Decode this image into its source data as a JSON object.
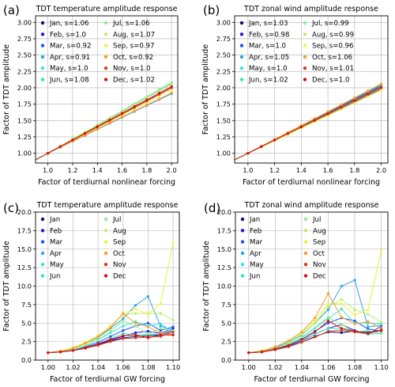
{
  "months": [
    "Jan",
    "Feb",
    "Mar",
    "Apr",
    "May",
    "Jun",
    "Jul",
    "Aug",
    "Sep",
    "Oct",
    "Nov",
    "Dec"
  ],
  "colors": [
    "#0d0d80",
    "#1c1ce0",
    "#1c55f5",
    "#2aa4f2",
    "#30e6e0",
    "#2ee6c0",
    "#8ef090",
    "#b8f26a",
    "#f0f03a",
    "#ff9a28",
    "#e03a1a",
    "#d81010"
  ],
  "chart_data": [
    {
      "panel_label": "(a)",
      "type": "line",
      "title": "TDT temperature amplitude response",
      "xlabel": "Factor of terdiurnal nonlinear forcing",
      "ylabel": "Factor of TDT amplitude",
      "xlim": [
        0.9,
        2.05
      ],
      "ylim": [
        0.85,
        3.1
      ],
      "xticks": [
        "1.0",
        "1.2",
        "1.4",
        "1.6",
        "1.8",
        "2.0"
      ],
      "yticks": [
        "1.00",
        "1.25",
        "1.50",
        "1.75",
        "2.00",
        "2.25",
        "2.50",
        "2.75",
        "3.00"
      ],
      "grid": true,
      "legend_position": "top-left",
      "legend_columns": 2,
      "x": [
        1.0,
        1.1,
        1.2,
        1.3,
        1.4,
        1.5,
        1.6,
        1.7,
        1.8,
        1.9,
        2.0
      ],
      "reference_line": {
        "from": [
          0.9,
          0.9
        ],
        "to": [
          2.0,
          2.0
        ]
      },
      "series": [
        {
          "name": "Jan",
          "legend": "Jan, s=1.06",
          "slope": 1.06
        },
        {
          "name": "Feb",
          "legend": "Feb, s=1.0",
          "slope": 1.0
        },
        {
          "name": "Mar",
          "legend": "Mar, s=0.92",
          "slope": 0.92
        },
        {
          "name": "Apr",
          "legend": "Apr, s=0.91",
          "slope": 0.91
        },
        {
          "name": "May",
          "legend": "May, s=1.0",
          "slope": 1.0
        },
        {
          "name": "Jun",
          "legend": "Jun, s=1.08",
          "slope": 1.08
        },
        {
          "name": "Jul",
          "legend": "Jul, s=1.06",
          "slope": 1.06
        },
        {
          "name": "Aug",
          "legend": "Aug, s=1.07",
          "slope": 1.07
        },
        {
          "name": "Sep",
          "legend": "Sep, s=0.97",
          "slope": 0.97
        },
        {
          "name": "Oct",
          "legend": "Oct, s=0.92",
          "slope": 0.92
        },
        {
          "name": "Nov",
          "legend": "Nov, s=1.0",
          "slope": 1.0
        },
        {
          "name": "Dec",
          "legend": "Dec, s=1.02",
          "slope": 1.02
        }
      ]
    },
    {
      "panel_label": "(b)",
      "type": "line",
      "title": "TDT zonal wind amplitude response",
      "xlabel": "Factor of terdiurnal nonlinear forcing",
      "ylabel": "Factor of TDT amplitude",
      "xlim": [
        0.9,
        2.05
      ],
      "ylim": [
        0.85,
        3.1
      ],
      "xticks": [
        "1.0",
        "1.2",
        "1.4",
        "1.6",
        "1.8",
        "2.0"
      ],
      "yticks": [
        "1.00",
        "1.25",
        "1.50",
        "1.75",
        "2.00",
        "2.25",
        "2.50",
        "2.75",
        "3.00"
      ],
      "grid": true,
      "legend_position": "top-left",
      "legend_columns": 2,
      "x": [
        1.0,
        1.1,
        1.2,
        1.3,
        1.4,
        1.5,
        1.6,
        1.7,
        1.8,
        1.9,
        2.0
      ],
      "reference_line": {
        "from": [
          0.9,
          0.9
        ],
        "to": [
          2.0,
          2.0
        ]
      },
      "series": [
        {
          "name": "Jan",
          "legend": "Jan, s=1.03",
          "slope": 1.03
        },
        {
          "name": "Feb",
          "legend": "Feb, s=0.98",
          "slope": 0.98
        },
        {
          "name": "Mar",
          "legend": "Mar, s=1.0",
          "slope": 1.0
        },
        {
          "name": "Apr",
          "legend": "Apr, s=1.05",
          "slope": 1.05
        },
        {
          "name": "May",
          "legend": "May, s=1.0",
          "slope": 1.0
        },
        {
          "name": "Jun",
          "legend": "Jun, s=1.02",
          "slope": 1.02
        },
        {
          "name": "Jul",
          "legend": "Jul, s=0.99",
          "slope": 0.99
        },
        {
          "name": "Aug",
          "legend": "Aug, s=0.99",
          "slope": 0.99
        },
        {
          "name": "Sep",
          "legend": "Sep, s=0.96",
          "slope": 0.96
        },
        {
          "name": "Oct",
          "legend": "Oct, s=1.06",
          "slope": 1.06
        },
        {
          "name": "Nov",
          "legend": "Nov, s=1.01",
          "slope": 1.01
        },
        {
          "name": "Dec",
          "legend": "Dec, s=1.0",
          "slope": 1.0
        }
      ]
    },
    {
      "panel_label": "(c)",
      "type": "line",
      "title": "TDT temperature amplitude response",
      "xlabel": "Factor of terdiurnal GW forcing",
      "ylabel": "Factor of TDT amplitude",
      "xlim": [
        0.99,
        1.105
      ],
      "ylim": [
        0,
        20
      ],
      "xticks": [
        "1.00",
        "1.02",
        "1.04",
        "1.06",
        "1.08",
        "1.10"
      ],
      "yticks": [
        "0.0",
        "2.5",
        "5.0",
        "7.5",
        "10.0",
        "12.5",
        "15.0",
        "17.5",
        "20.0"
      ],
      "grid": true,
      "legend_position": "top-left",
      "legend_columns": 2,
      "x": [
        1.0,
        1.01,
        1.02,
        1.03,
        1.04,
        1.05,
        1.06,
        1.07,
        1.08,
        1.09,
        1.1
      ],
      "series": [
        {
          "name": "Jan",
          "values": [
            1.0,
            1.1,
            1.3,
            1.6,
            2.0,
            2.6,
            3.0,
            3.2,
            3.3,
            3.4,
            4.0
          ]
        },
        {
          "name": "Feb",
          "values": [
            1.0,
            1.1,
            1.3,
            1.6,
            2.1,
            2.7,
            3.2,
            3.7,
            3.9,
            3.6,
            4.3
          ]
        },
        {
          "name": "Mar",
          "values": [
            1.0,
            1.1,
            1.4,
            1.8,
            2.4,
            3.2,
            4.0,
            4.6,
            5.0,
            4.0,
            4.5
          ]
        },
        {
          "name": "Apr",
          "values": [
            1.0,
            1.2,
            1.6,
            2.2,
            3.0,
            4.3,
            5.6,
            7.4,
            8.6,
            4.6,
            4.0
          ]
        },
        {
          "name": "May",
          "values": [
            1.0,
            1.1,
            1.4,
            1.9,
            2.7,
            3.7,
            4.6,
            5.2,
            4.6,
            4.9,
            3.8
          ]
        },
        {
          "name": "Jun",
          "values": [
            1.0,
            1.1,
            1.3,
            1.7,
            2.2,
            2.9,
            3.6,
            3.4,
            3.5,
            3.5,
            3.5
          ]
        },
        {
          "name": "Jul",
          "values": [
            1.0,
            1.2,
            1.5,
            2.0,
            2.7,
            3.9,
            5.3,
            4.6,
            3.5,
            4.3,
            4.0
          ]
        },
        {
          "name": "Aug",
          "values": [
            1.0,
            1.2,
            1.6,
            2.2,
            3.1,
            4.6,
            6.2,
            6.3,
            6.3,
            6.3,
            5.4
          ]
        },
        {
          "name": "Sep",
          "values": [
            1.0,
            1.2,
            1.7,
            2.4,
            3.3,
            4.6,
            6.1,
            6.9,
            6.2,
            7.6,
            15.8
          ]
        },
        {
          "name": "Oct",
          "values": [
            1.0,
            1.2,
            1.6,
            2.3,
            3.2,
            4.4,
            6.3,
            5.0,
            4.5,
            3.7,
            3.4
          ]
        },
        {
          "name": "Nov",
          "values": [
            1.0,
            1.1,
            1.3,
            1.6,
            2.0,
            2.5,
            2.9,
            3.0,
            3.1,
            3.2,
            3.8
          ]
        },
        {
          "name": "Dec",
          "values": [
            1.0,
            1.1,
            1.3,
            1.7,
            2.2,
            2.8,
            3.3,
            3.4,
            3.0,
            3.4,
            3.4
          ]
        }
      ]
    },
    {
      "panel_label": "(d)",
      "type": "line",
      "title": "TDT zonal wind amplitude response",
      "xlabel": "Factor of terdiurnal GW forcing",
      "ylabel": "Factor of TDT amplitude",
      "xlim": [
        0.99,
        1.105
      ],
      "ylim": [
        0,
        20
      ],
      "xticks": [
        "1.00",
        "1.02",
        "1.04",
        "1.06",
        "1.08",
        "1.10"
      ],
      "yticks": [
        "0.0",
        "2.5",
        "5.0",
        "7.5",
        "10.0",
        "12.5",
        "15.0",
        "17.5",
        "20.0"
      ],
      "grid": true,
      "legend_position": "top-left",
      "legend_columns": 2,
      "x": [
        1.0,
        1.01,
        1.02,
        1.03,
        1.04,
        1.05,
        1.06,
        1.07,
        1.08,
        1.09,
        1.1
      ],
      "series": [
        {
          "name": "Jan",
          "values": [
            1.0,
            1.1,
            1.4,
            1.8,
            2.4,
            3.2,
            3.8,
            3.7,
            3.9,
            3.8,
            4.0
          ]
        },
        {
          "name": "Feb",
          "values": [
            1.0,
            1.1,
            1.4,
            1.9,
            2.6,
            3.5,
            4.3,
            4.8,
            4.0,
            3.5,
            4.6
          ]
        },
        {
          "name": "Mar",
          "values": [
            1.0,
            1.1,
            1.5,
            2.0,
            2.8,
            3.9,
            5.0,
            5.7,
            5.3,
            4.2,
            3.9
          ]
        },
        {
          "name": "Apr",
          "values": [
            1.0,
            1.2,
            1.7,
            2.4,
            3.4,
            5.0,
            6.8,
            10.0,
            10.8,
            4.5,
            4.7
          ]
        },
        {
          "name": "May",
          "values": [
            1.0,
            1.2,
            1.6,
            2.1,
            3.0,
            4.3,
            5.6,
            6.9,
            5.0,
            5.0,
            4.9
          ]
        },
        {
          "name": "Jun",
          "values": [
            1.0,
            1.1,
            1.5,
            2.0,
            2.7,
            3.5,
            4.3,
            4.2,
            3.8,
            3.5,
            3.6
          ]
        },
        {
          "name": "Jul",
          "values": [
            1.0,
            1.2,
            1.6,
            2.2,
            3.1,
            4.4,
            5.8,
            4.8,
            3.8,
            4.0,
            3.6
          ]
        },
        {
          "name": "Aug",
          "values": [
            1.0,
            1.3,
            1.8,
            2.5,
            3.5,
            5.0,
            7.2,
            8.2,
            6.8,
            6.2,
            5.1
          ]
        },
        {
          "name": "Sep",
          "values": [
            1.0,
            1.2,
            1.8,
            2.6,
            3.7,
            5.3,
            7.6,
            7.6,
            6.1,
            6.8,
            14.8
          ]
        },
        {
          "name": "Oct",
          "values": [
            1.0,
            1.2,
            1.8,
            2.6,
            3.8,
            5.7,
            9.0,
            5.8,
            4.9,
            5.2,
            4.3
          ]
        },
        {
          "name": "Nov",
          "values": [
            1.0,
            1.1,
            1.4,
            1.8,
            2.4,
            3.1,
            3.9,
            4.0,
            3.8,
            3.6,
            4.0
          ]
        },
        {
          "name": "Dec",
          "values": [
            1.0,
            1.1,
            1.5,
            2.0,
            2.8,
            3.8,
            5.3,
            4.3,
            3.9,
            3.6,
            4.1
          ]
        }
      ]
    }
  ]
}
